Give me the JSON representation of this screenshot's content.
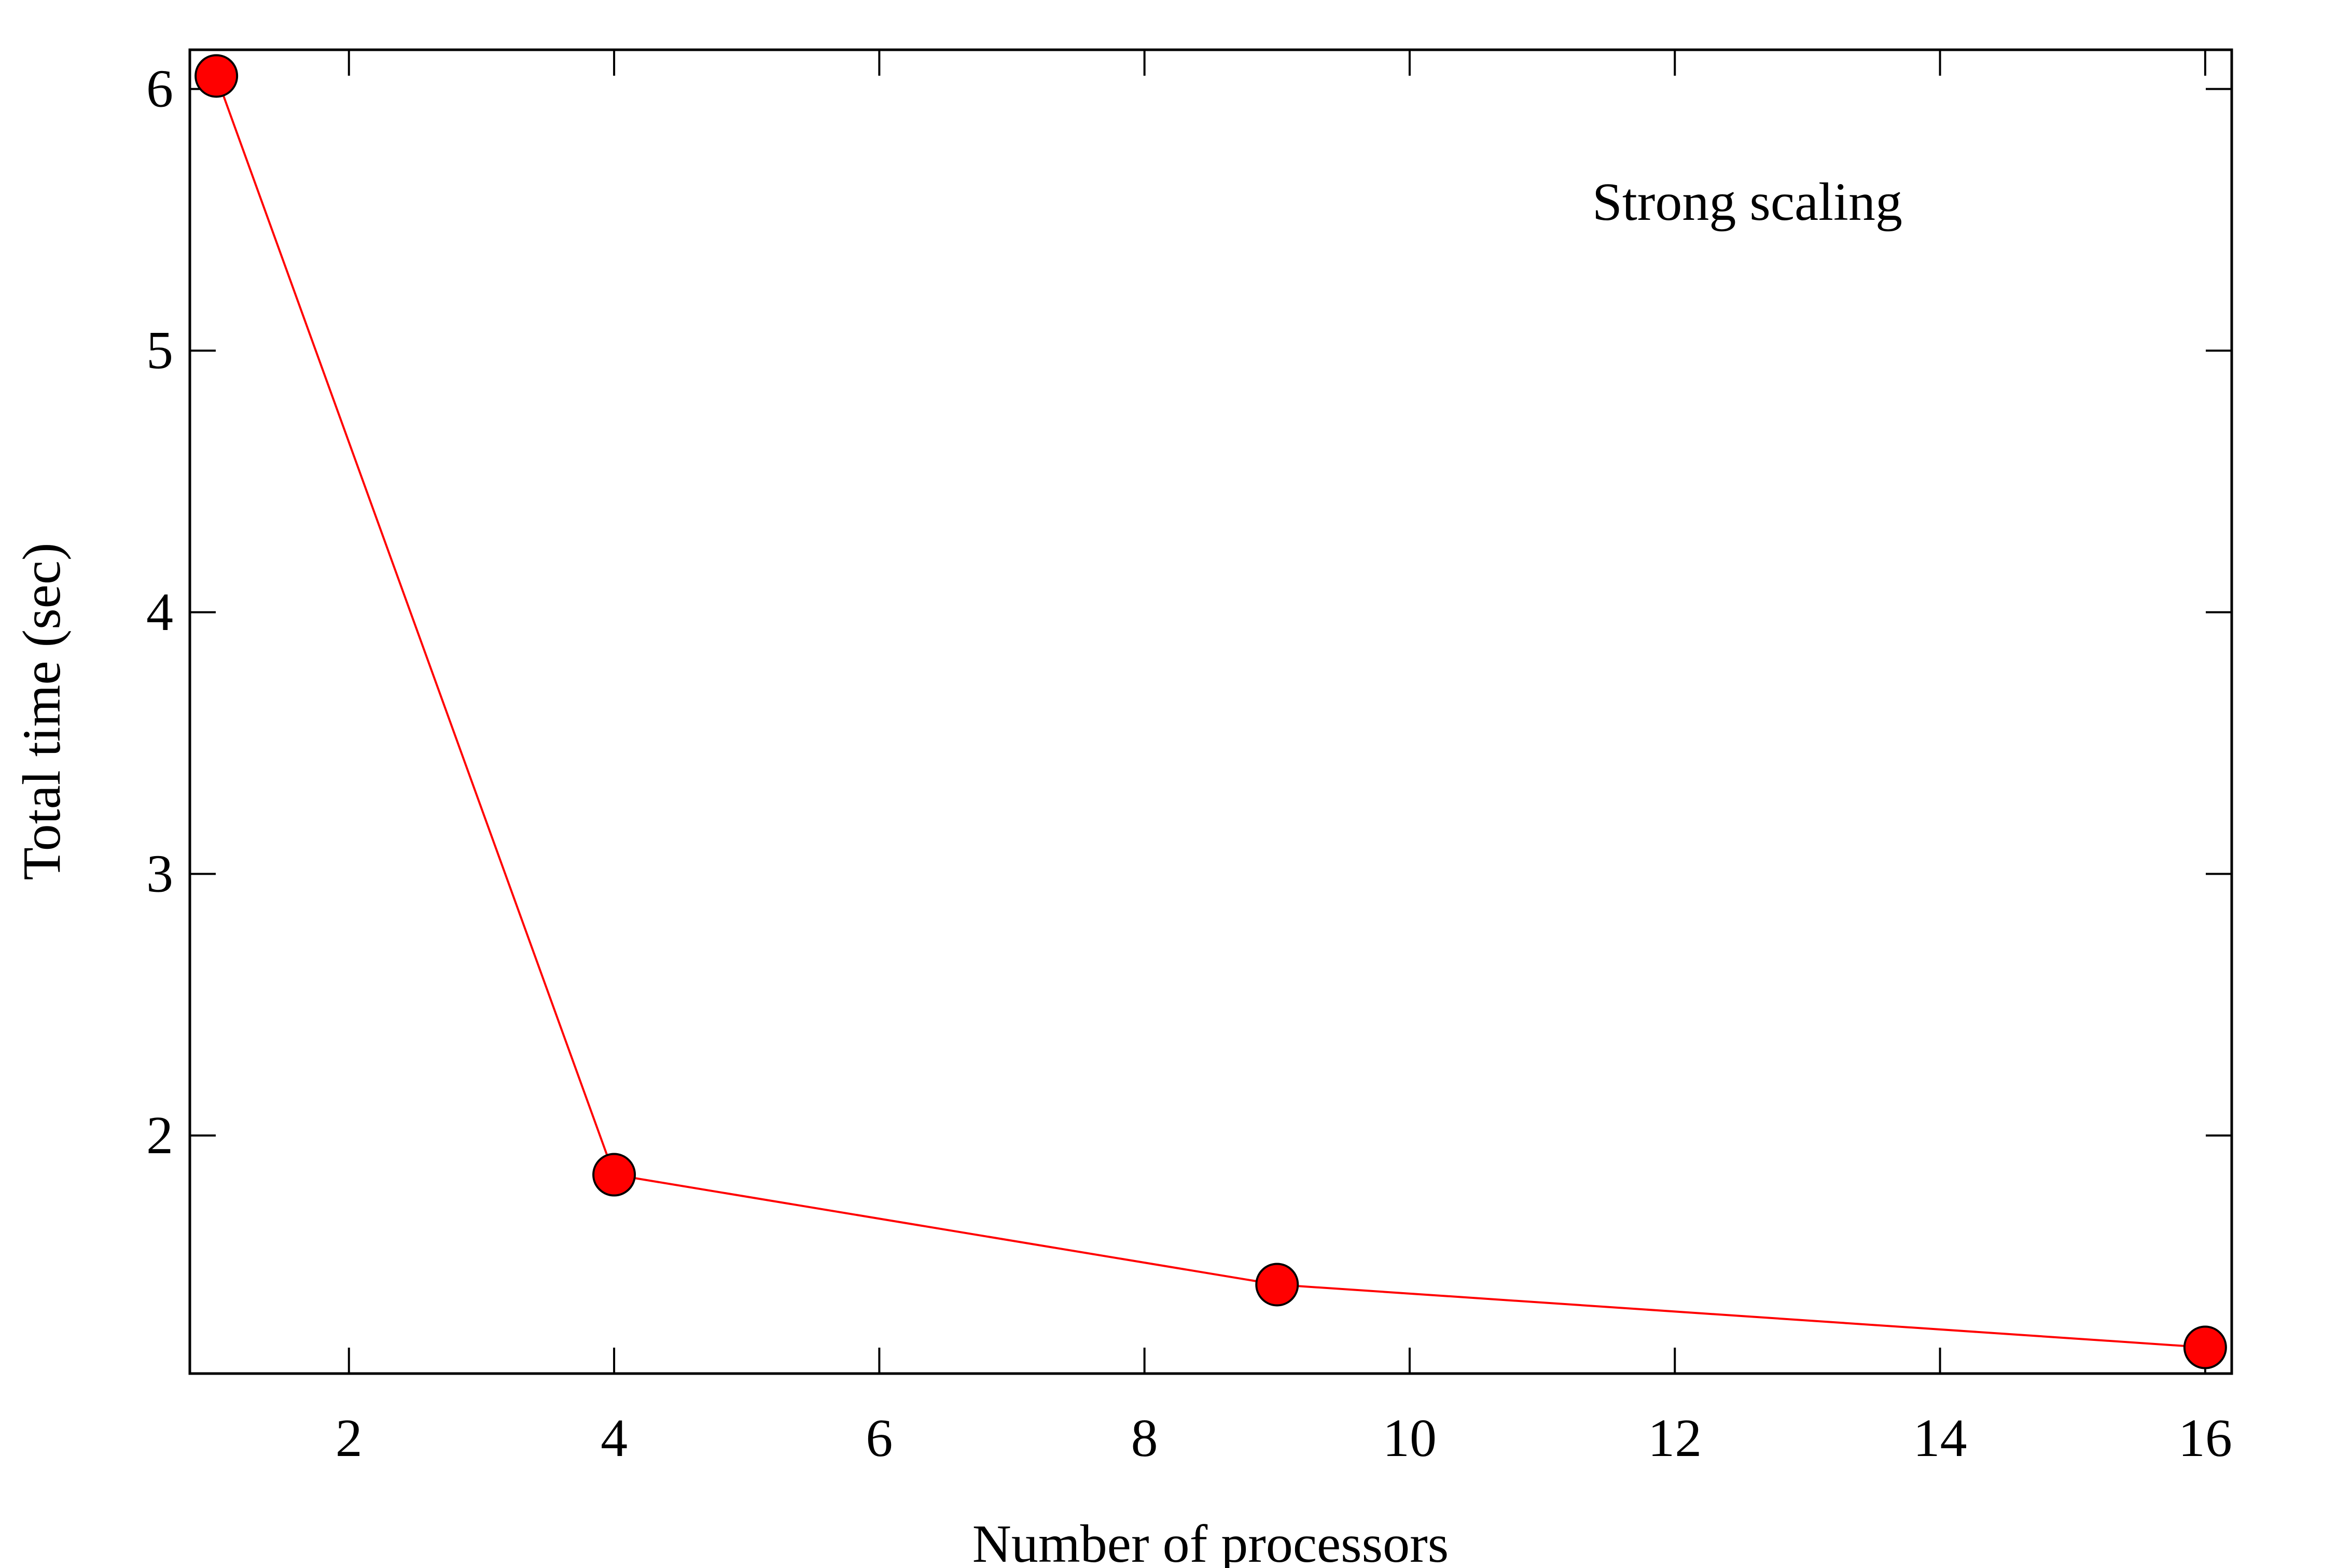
{
  "chart_data": {
    "type": "line",
    "xlabel": "Number of processors",
    "ylabel": "Total time (sec)",
    "annotation": "Strong scaling",
    "x_ticks": [
      2,
      4,
      6,
      8,
      10,
      12,
      14,
      16
    ],
    "y_ticks": [
      2,
      3,
      4,
      5,
      6
    ],
    "xlim": [
      0.8,
      16.2
    ],
    "ylim": [
      1.09,
      6.15
    ],
    "grid": false,
    "series": [
      {
        "x": [
          1,
          4,
          9,
          16
        ],
        "y": [
          6.05,
          1.85,
          1.43,
          1.19
        ],
        "color": "#ff0000",
        "marker": "circle"
      }
    ]
  }
}
